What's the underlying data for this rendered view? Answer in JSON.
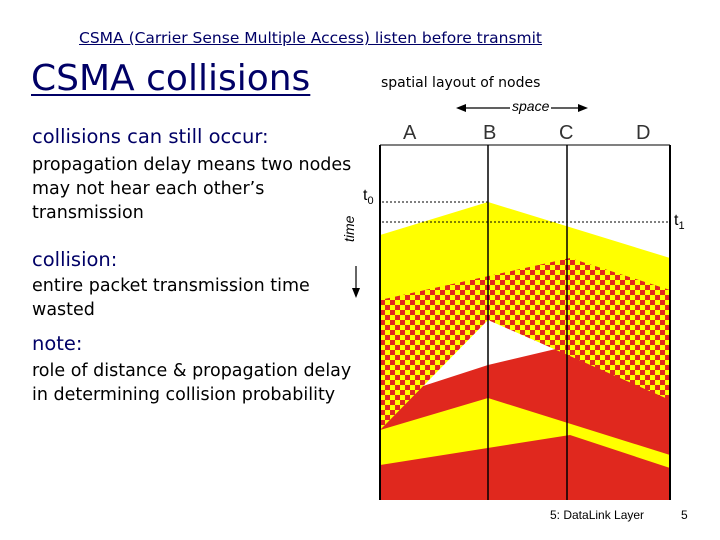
{
  "header": {
    "course_title": "CSMA (Carrier Sense Multiple Access) listen before transmit"
  },
  "slide": {
    "title": "CSMA collisions"
  },
  "sections": [
    {
      "heading": "collisions can still occur:",
      "body": "propagation delay means two nodes may not hear each other’s transmission"
    },
    {
      "heading": "collision:",
      "body": "entire packet transmission time wasted"
    },
    {
      "heading": "note:",
      "body": "role of distance & propagation delay in determining collision probability"
    }
  ],
  "diagram": {
    "caption": "spatial layout of nodes",
    "space_label": "space",
    "time_label": "time",
    "nodes": [
      "A",
      "B",
      "C",
      "D"
    ],
    "t0_label": "t",
    "t0_sub": "0",
    "t1_label": "t",
    "t1_sub": "1",
    "colors": {
      "node_b_tx": "#ffff00",
      "node_d_tx": "#e0281e",
      "checker_red": "#e0281e",
      "checker_yellow": "#ffff00",
      "heading": "#000066"
    }
  },
  "footer": {
    "chapter": "5: DataLink Layer",
    "page": "5"
  }
}
